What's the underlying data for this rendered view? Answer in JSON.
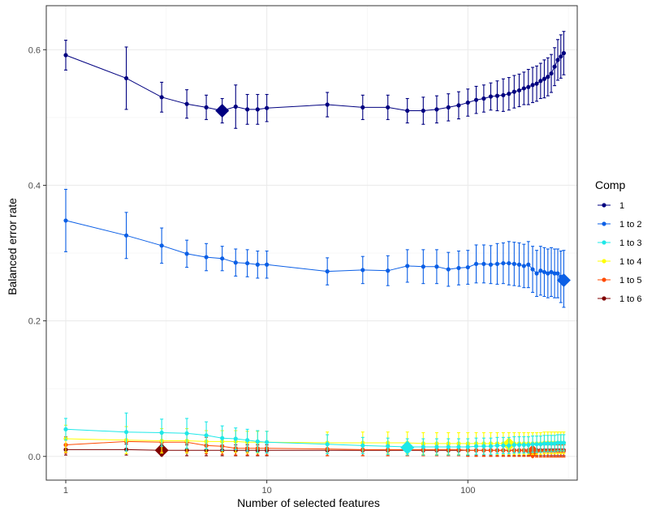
{
  "chart_data": {
    "type": "line",
    "title": "",
    "xlabel": "Number of selected features",
    "ylabel": "Balanced error rate",
    "xscale": "log10",
    "xlim": [
      0.8,
      350
    ],
    "ylim": [
      -0.035,
      0.665
    ],
    "x_ticks": [
      1,
      10,
      100
    ],
    "x_tick_labels": [
      "1",
      "10",
      "100"
    ],
    "y_ticks": [
      0.0,
      0.2,
      0.4,
      0.6
    ],
    "y_tick_labels": [
      "0.0",
      "0.2",
      "0.4",
      "0.6"
    ],
    "grid": true,
    "legend_title": "Comp",
    "legend_position": "right",
    "x": [
      1,
      2,
      3,
      4,
      5,
      6,
      7,
      8,
      9,
      10,
      20,
      30,
      40,
      50,
      60,
      70,
      80,
      90,
      100,
      110,
      120,
      130,
      140,
      150,
      160,
      170,
      180,
      190,
      200,
      210,
      220,
      230,
      240,
      250,
      260,
      270,
      280,
      290,
      300
    ],
    "series": [
      {
        "name": "1",
        "color": "#000080",
        "values": [
          0.592,
          0.558,
          0.53,
          0.52,
          0.515,
          0.51,
          0.516,
          0.512,
          0.512,
          0.514,
          0.519,
          0.515,
          0.515,
          0.51,
          0.51,
          0.512,
          0.515,
          0.518,
          0.522,
          0.526,
          0.528,
          0.531,
          0.532,
          0.533,
          0.535,
          0.538,
          0.54,
          0.543,
          0.545,
          0.548,
          0.55,
          0.554,
          0.557,
          0.56,
          0.565,
          0.575,
          0.585,
          0.59,
          0.595
        ],
        "errors": [
          0.022,
          0.046,
          0.022,
          0.021,
          0.018,
          0.018,
          0.032,
          0.022,
          0.022,
          0.02,
          0.018,
          0.018,
          0.018,
          0.018,
          0.02,
          0.02,
          0.02,
          0.02,
          0.02,
          0.02,
          0.02,
          0.02,
          0.022,
          0.024,
          0.024,
          0.024,
          0.024,
          0.024,
          0.026,
          0.026,
          0.026,
          0.026,
          0.028,
          0.028,
          0.028,
          0.028,
          0.03,
          0.032,
          0.032
        ],
        "optimal_x": 6,
        "optimal_y": 0.51
      },
      {
        "name": "1 to 2",
        "color": "#0B5FE6",
        "values": [
          0.348,
          0.326,
          0.311,
          0.299,
          0.294,
          0.292,
          0.286,
          0.285,
          0.283,
          0.283,
          0.273,
          0.275,
          0.274,
          0.281,
          0.28,
          0.28,
          0.276,
          0.278,
          0.279,
          0.284,
          0.284,
          0.283,
          0.284,
          0.285,
          0.285,
          0.284,
          0.283,
          0.281,
          0.283,
          0.276,
          0.27,
          0.274,
          0.272,
          0.27,
          0.272,
          0.27,
          0.27,
          0.265,
          0.262
        ],
        "errors": [
          0.046,
          0.034,
          0.026,
          0.02,
          0.02,
          0.018,
          0.02,
          0.02,
          0.02,
          0.02,
          0.02,
          0.02,
          0.022,
          0.024,
          0.025,
          0.025,
          0.025,
          0.025,
          0.025,
          0.028,
          0.028,
          0.028,
          0.03,
          0.03,
          0.032,
          0.032,
          0.032,
          0.032,
          0.034,
          0.034,
          0.034,
          0.036,
          0.036,
          0.036,
          0.036,
          0.036,
          0.036,
          0.038,
          0.042
        ],
        "optimal_x": 300,
        "optimal_y": 0.26
      },
      {
        "name": "1 to 3",
        "color": "#1EE8E8",
        "values": [
          0.04,
          0.036,
          0.035,
          0.034,
          0.031,
          0.027,
          0.026,
          0.024,
          0.022,
          0.021,
          0.018,
          0.016,
          0.015,
          0.014,
          0.014,
          0.014,
          0.014,
          0.014,
          0.014,
          0.015,
          0.015,
          0.015,
          0.016,
          0.016,
          0.016,
          0.017,
          0.017,
          0.017,
          0.017,
          0.018,
          0.018,
          0.018,
          0.019,
          0.019,
          0.019,
          0.019,
          0.02,
          0.02,
          0.02
        ],
        "errors": [
          0.016,
          0.028,
          0.02,
          0.022,
          0.02,
          0.018,
          0.016,
          0.016,
          0.016,
          0.016,
          0.014,
          0.012,
          0.012,
          0.012,
          0.012,
          0.012,
          0.012,
          0.012,
          0.012,
          0.012,
          0.012,
          0.012,
          0.012,
          0.012,
          0.012,
          0.012,
          0.012,
          0.012,
          0.012,
          0.012,
          0.012,
          0.012,
          0.012,
          0.012,
          0.012,
          0.012,
          0.012,
          0.012,
          0.012
        ],
        "optimal_x": 50,
        "optimal_y": 0.013
      },
      {
        "name": "1 to 4",
        "color": "#FFFF00",
        "values": [
          0.026,
          0.024,
          0.023,
          0.023,
          0.022,
          0.022,
          0.022,
          0.021,
          0.021,
          0.021,
          0.02,
          0.02,
          0.02,
          0.02,
          0.019,
          0.019,
          0.019,
          0.019,
          0.019,
          0.019,
          0.019,
          0.019,
          0.019,
          0.019,
          0.019,
          0.019,
          0.019,
          0.019,
          0.019,
          0.019,
          0.019,
          0.019,
          0.02,
          0.02,
          0.02,
          0.02,
          0.02,
          0.02,
          0.02
        ],
        "errors": [
          0.02,
          0.02,
          0.018,
          0.018,
          0.016,
          0.016,
          0.016,
          0.016,
          0.016,
          0.016,
          0.016,
          0.016,
          0.016,
          0.016,
          0.016,
          0.016,
          0.016,
          0.016,
          0.016,
          0.016,
          0.016,
          0.016,
          0.016,
          0.016,
          0.016,
          0.016,
          0.016,
          0.016,
          0.016,
          0.016,
          0.016,
          0.016,
          0.016,
          0.016,
          0.016,
          0.016,
          0.016,
          0.016,
          0.016
        ],
        "optimal_x": 160,
        "optimal_y": 0.018
      },
      {
        "name": "1 to 5",
        "color": "#FF4A00",
        "values": [
          0.017,
          0.022,
          0.021,
          0.021,
          0.016,
          0.015,
          0.012,
          0.012,
          0.012,
          0.012,
          0.011,
          0.01,
          0.01,
          0.01,
          0.01,
          0.01,
          0.01,
          0.01,
          0.009,
          0.009,
          0.009,
          0.009,
          0.009,
          0.009,
          0.009,
          0.009,
          0.009,
          0.009,
          0.009,
          0.008,
          0.008,
          0.008,
          0.008,
          0.008,
          0.008,
          0.008,
          0.008,
          0.008,
          0.008
        ],
        "errors": [
          0.012,
          0.014,
          0.014,
          0.014,
          0.012,
          0.012,
          0.01,
          0.01,
          0.01,
          0.01,
          0.01,
          0.009,
          0.009,
          0.009,
          0.009,
          0.009,
          0.009,
          0.009,
          0.009,
          0.009,
          0.009,
          0.009,
          0.009,
          0.009,
          0.009,
          0.009,
          0.009,
          0.009,
          0.009,
          0.009,
          0.009,
          0.009,
          0.009,
          0.009,
          0.009,
          0.009,
          0.009,
          0.009,
          0.009
        ],
        "optimal_x": 210,
        "optimal_y": 0.007
      },
      {
        "name": "1 to 6",
        "color": "#800000",
        "values": [
          0.01,
          0.01,
          0.009,
          0.009,
          0.009,
          0.009,
          0.009,
          0.009,
          0.009,
          0.009,
          0.009,
          0.009,
          0.009,
          0.009,
          0.009,
          0.009,
          0.009,
          0.009,
          0.009,
          0.009,
          0.009,
          0.009,
          0.009,
          0.009,
          0.009,
          0.009,
          0.009,
          0.009,
          0.009,
          0.009,
          0.009,
          0.009,
          0.009,
          0.009,
          0.009,
          0.009,
          0.009,
          0.009,
          0.009
        ],
        "errors": [
          0.008,
          0.008,
          0.008,
          0.008,
          0.008,
          0.008,
          0.008,
          0.008,
          0.008,
          0.008,
          0.008,
          0.008,
          0.008,
          0.008,
          0.008,
          0.008,
          0.008,
          0.008,
          0.008,
          0.008,
          0.008,
          0.008,
          0.008,
          0.008,
          0.008,
          0.008,
          0.008,
          0.008,
          0.008,
          0.008,
          0.008,
          0.008,
          0.008,
          0.008,
          0.008,
          0.008,
          0.008,
          0.008,
          0.008
        ],
        "optimal_x": 3,
        "optimal_y": 0.009
      }
    ]
  }
}
